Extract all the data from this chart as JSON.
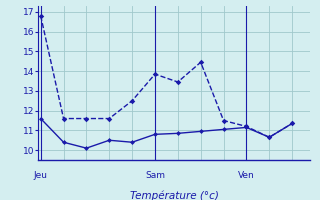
{
  "line1_x": [
    0,
    1,
    2,
    3,
    4,
    5,
    6,
    7,
    8,
    9,
    10,
    11
  ],
  "line1_y": [
    16.8,
    11.6,
    11.6,
    11.6,
    12.5,
    13.85,
    13.45,
    14.45,
    11.5,
    11.2,
    10.65,
    11.35
  ],
  "line2_x": [
    0,
    1,
    2,
    3,
    4,
    5,
    6,
    7,
    8,
    9,
    10,
    11
  ],
  "line2_y": [
    11.6,
    10.4,
    10.1,
    10.5,
    10.4,
    10.8,
    10.85,
    10.95,
    11.05,
    11.15,
    10.65,
    11.35
  ],
  "line_color": "#1a1aaa",
  "bg_color": "#d4eef0",
  "grid_color": "#a0c8cc",
  "xlabel": "Température (°c)",
  "ylim": [
    9.5,
    17.3
  ],
  "yticks": [
    10,
    11,
    12,
    13,
    14,
    15,
    16,
    17
  ],
  "xlim": [
    -0.1,
    11.8
  ],
  "day_positions": [
    0,
    5,
    9
  ],
  "day_labels": [
    "Jeu",
    "Sam",
    "Ven"
  ],
  "vline_positions": [
    0,
    5,
    9
  ]
}
